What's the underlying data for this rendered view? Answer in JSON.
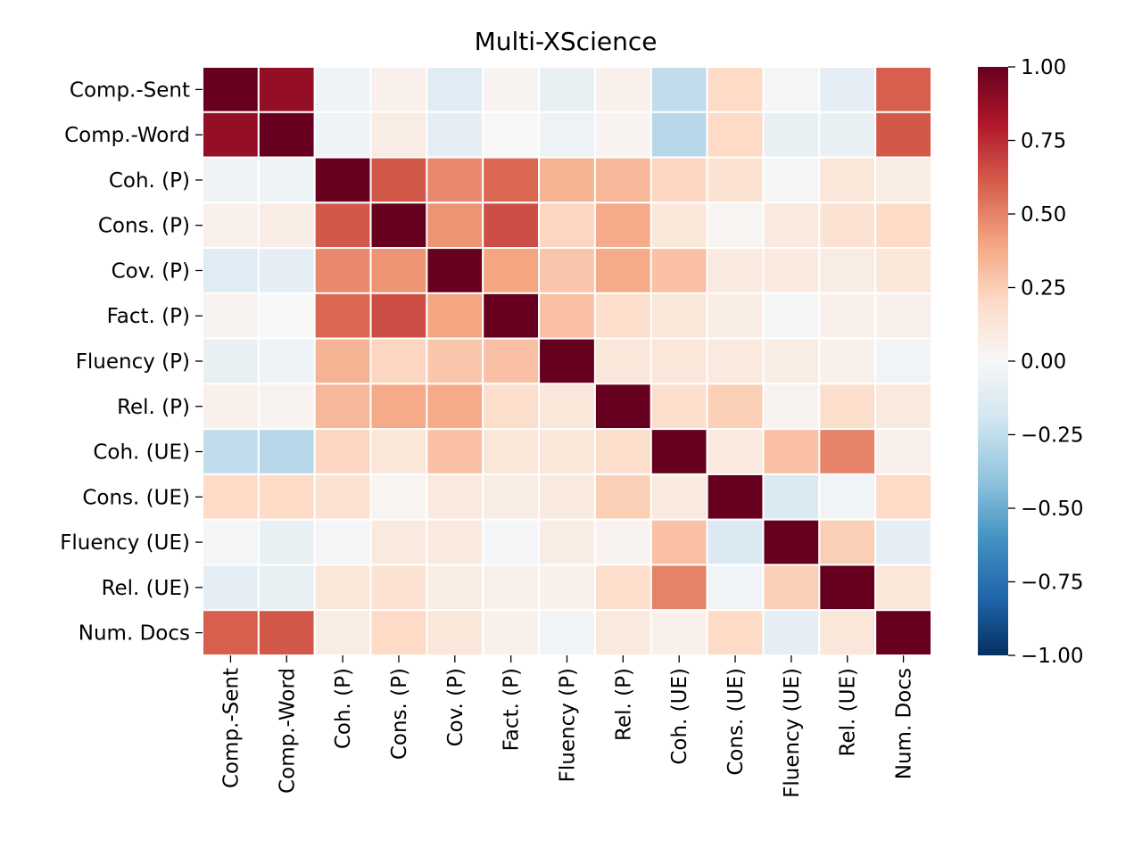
{
  "chart_data": {
    "type": "heatmap",
    "title": "Multi-XScience",
    "labels": [
      "Comp.-Sent",
      "Comp.-Word",
      "Coh. (P)",
      "Cons. (P)",
      "Cov. (P)",
      "Fact. (P)",
      "Fluency (P)",
      "Rel. (P)",
      "Coh. (UE)",
      "Cons. (UE)",
      "Fluency (UE)",
      "Rel. (UE)",
      "Num. Docs"
    ],
    "matrix": [
      [
        1.0,
        0.88,
        -0.05,
        0.05,
        -0.12,
        0.03,
        -0.08,
        0.05,
        -0.25,
        0.2,
        -0.02,
        -0.1,
        0.6
      ],
      [
        0.88,
        1.0,
        -0.05,
        0.08,
        -0.1,
        0.0,
        -0.06,
        0.03,
        -0.28,
        0.2,
        -0.08,
        -0.08,
        0.62
      ],
      [
        -0.05,
        -0.05,
        1.0,
        0.62,
        0.48,
        0.58,
        0.35,
        0.33,
        0.22,
        0.15,
        -0.02,
        0.12,
        0.08
      ],
      [
        0.05,
        0.08,
        0.62,
        1.0,
        0.45,
        0.65,
        0.22,
        0.38,
        0.12,
        0.02,
        0.1,
        0.15,
        0.2
      ],
      [
        -0.12,
        -0.1,
        0.48,
        0.45,
        1.0,
        0.4,
        0.28,
        0.38,
        0.3,
        0.1,
        0.1,
        0.08,
        0.12
      ],
      [
        0.03,
        0.0,
        0.58,
        0.65,
        0.4,
        1.0,
        0.3,
        0.18,
        0.12,
        0.08,
        -0.01,
        0.05,
        0.05
      ],
      [
        -0.08,
        -0.06,
        0.35,
        0.22,
        0.28,
        0.3,
        1.0,
        0.12,
        0.12,
        0.1,
        0.08,
        0.05,
        -0.03
      ],
      [
        0.05,
        0.03,
        0.33,
        0.38,
        0.38,
        0.18,
        0.12,
        1.0,
        0.18,
        0.25,
        0.03,
        0.18,
        0.1
      ],
      [
        -0.25,
        -0.28,
        0.22,
        0.12,
        0.3,
        0.12,
        0.12,
        0.18,
        1.0,
        0.1,
        0.3,
        0.5,
        0.05
      ],
      [
        0.2,
        0.2,
        0.15,
        0.02,
        0.1,
        0.08,
        0.1,
        0.25,
        0.1,
        1.0,
        -0.15,
        -0.03,
        0.2
      ],
      [
        -0.02,
        -0.08,
        -0.02,
        0.1,
        0.1,
        -0.01,
        0.08,
        0.03,
        0.3,
        -0.15,
        1.0,
        0.25,
        -0.1
      ],
      [
        -0.1,
        -0.08,
        0.12,
        0.15,
        0.08,
        0.05,
        0.05,
        0.18,
        0.5,
        -0.03,
        0.25,
        1.0,
        0.12
      ],
      [
        0.6,
        0.62,
        0.08,
        0.2,
        0.12,
        0.05,
        -0.03,
        0.1,
        0.05,
        0.2,
        -0.1,
        0.12,
        1.0
      ]
    ],
    "colormap": "RdBu_r",
    "vmin": -1.0,
    "vmax": 1.0,
    "colorbar_ticks": [
      "1.00",
      "0.75",
      "0.50",
      "0.25",
      "0.00",
      "−0.25",
      "−0.50",
      "−0.75",
      "−1.00"
    ],
    "colorbar_tick_values": [
      1.0,
      0.75,
      0.5,
      0.25,
      0.0,
      -0.25,
      -0.5,
      -0.75,
      -1.0
    ]
  }
}
